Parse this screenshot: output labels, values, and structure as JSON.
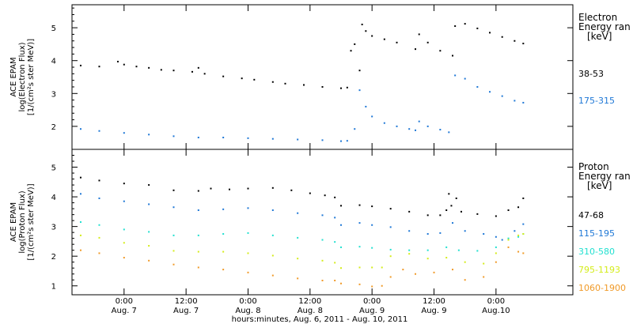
{
  "chart_data": [
    {
      "type": "scatter",
      "panel": "electron",
      "ylabel_lines": [
        "ACE EPAM",
        "log(Electron Flux)",
        "[1/(cm²s ster MeV)]"
      ],
      "ylim": [
        1.3,
        5.7
      ],
      "yticks": [
        2,
        3,
        4,
        5
      ],
      "legend_title_lines": [
        "Electron",
        "Energy ran",
        "[keV]"
      ],
      "series": [
        {
          "name": "38-53",
          "color": "#000000",
          "points": [
            [
              -0.35,
              3.85
            ],
            [
              -0.2,
              3.82
            ],
            [
              -0.05,
              3.97
            ],
            [
              0.0,
              3.88
            ],
            [
              0.1,
              3.82
            ],
            [
              0.2,
              3.78
            ],
            [
              0.3,
              3.72
            ],
            [
              0.4,
              3.7
            ],
            [
              0.55,
              3.66
            ],
            [
              0.6,
              3.78
            ],
            [
              0.65,
              3.6
            ],
            [
              0.8,
              3.52
            ],
            [
              0.95,
              3.46
            ],
            [
              1.05,
              3.42
            ],
            [
              1.2,
              3.35
            ],
            [
              1.3,
              3.3
            ],
            [
              1.45,
              3.26
            ],
            [
              1.6,
              3.2
            ],
            [
              1.75,
              3.16
            ],
            [
              1.8,
              3.18
            ],
            [
              1.83,
              4.3
            ],
            [
              1.86,
              4.5
            ],
            [
              1.9,
              3.7
            ],
            [
              1.92,
              5.1
            ],
            [
              1.95,
              4.9
            ],
            [
              2.0,
              4.75
            ],
            [
              2.1,
              4.65
            ],
            [
              2.2,
              4.55
            ],
            [
              2.35,
              4.35
            ],
            [
              2.38,
              4.8
            ],
            [
              2.45,
              4.55
            ],
            [
              2.55,
              4.3
            ],
            [
              2.65,
              4.15
            ],
            [
              2.67,
              5.05
            ],
            [
              2.75,
              5.12
            ],
            [
              2.85,
              4.98
            ],
            [
              2.95,
              4.85
            ],
            [
              3.05,
              4.72
            ],
            [
              3.15,
              4.6
            ],
            [
              3.22,
              4.52
            ]
          ]
        },
        {
          "name": "175-315",
          "color": "#1f78d6",
          "points": [
            [
              -0.35,
              1.92
            ],
            [
              -0.2,
              1.86
            ],
            [
              0.0,
              1.8
            ],
            [
              0.2,
              1.75
            ],
            [
              0.4,
              1.7
            ],
            [
              0.6,
              1.66
            ],
            [
              0.8,
              1.66
            ],
            [
              1.0,
              1.64
            ],
            [
              1.2,
              1.62
            ],
            [
              1.4,
              1.6
            ],
            [
              1.6,
              1.58
            ],
            [
              1.75,
              1.55
            ],
            [
              1.8,
              1.56
            ],
            [
              1.86,
              1.92
            ],
            [
              1.9,
              3.1
            ],
            [
              1.95,
              2.6
            ],
            [
              2.0,
              2.3
            ],
            [
              2.1,
              2.1
            ],
            [
              2.2,
              2.0
            ],
            [
              2.3,
              1.92
            ],
            [
              2.35,
              1.88
            ],
            [
              2.38,
              2.15
            ],
            [
              2.45,
              2.0
            ],
            [
              2.55,
              1.9
            ],
            [
              2.62,
              1.82
            ],
            [
              2.67,
              3.55
            ],
            [
              2.75,
              3.45
            ],
            [
              2.85,
              3.2
            ],
            [
              2.95,
              3.05
            ],
            [
              3.05,
              2.92
            ],
            [
              3.15,
              2.78
            ],
            [
              3.22,
              2.72
            ]
          ]
        }
      ]
    },
    {
      "type": "scatter",
      "panel": "proton",
      "ylabel_lines": [
        "ACE EPAM",
        "log(Proton Flux)",
        "[1/(cm²s ster MeV)]"
      ],
      "ylim": [
        0.7,
        5.6
      ],
      "yticks": [
        1,
        2,
        3,
        4,
        5
      ],
      "legend_title_lines": [
        "Proton",
        "Energy ran",
        "[keV]"
      ],
      "series": [
        {
          "name": "47-68",
          "color": "#000000",
          "points": [
            [
              -0.35,
              4.65
            ],
            [
              -0.2,
              4.55
            ],
            [
              0.0,
              4.45
            ],
            [
              0.2,
              4.4
            ],
            [
              0.4,
              4.22
            ],
            [
              0.6,
              4.2
            ],
            [
              0.7,
              4.28
            ],
            [
              0.85,
              4.25
            ],
            [
              1.0,
              4.28
            ],
            [
              1.2,
              4.3
            ],
            [
              1.35,
              4.22
            ],
            [
              1.5,
              4.12
            ],
            [
              1.62,
              4.05
            ],
            [
              1.7,
              3.98
            ],
            [
              1.75,
              3.7
            ],
            [
              1.9,
              3.72
            ],
            [
              2.0,
              3.68
            ],
            [
              2.15,
              3.6
            ],
            [
              2.3,
              3.5
            ],
            [
              2.45,
              3.38
            ],
            [
              2.55,
              3.38
            ],
            [
              2.6,
              3.55
            ],
            [
              2.62,
              4.1
            ],
            [
              2.64,
              3.7
            ],
            [
              2.68,
              3.95
            ],
            [
              2.72,
              3.5
            ],
            [
              2.85,
              3.42
            ],
            [
              3.0,
              3.35
            ],
            [
              3.1,
              3.55
            ],
            [
              3.18,
              3.65
            ],
            [
              3.22,
              3.95
            ]
          ]
        },
        {
          "name": "115-195",
          "color": "#1f78d6",
          "points": [
            [
              -0.35,
              4.1
            ],
            [
              -0.2,
              3.95
            ],
            [
              0.0,
              3.85
            ],
            [
              0.2,
              3.75
            ],
            [
              0.4,
              3.65
            ],
            [
              0.6,
              3.55
            ],
            [
              0.8,
              3.58
            ],
            [
              1.0,
              3.62
            ],
            [
              1.2,
              3.55
            ],
            [
              1.4,
              3.45
            ],
            [
              1.6,
              3.38
            ],
            [
              1.7,
              3.3
            ],
            [
              1.75,
              3.05
            ],
            [
              1.9,
              3.12
            ],
            [
              2.0,
              3.05
            ],
            [
              2.15,
              2.98
            ],
            [
              2.3,
              2.85
            ],
            [
              2.45,
              2.75
            ],
            [
              2.55,
              2.78
            ],
            [
              2.65,
              3.12
            ],
            [
              2.75,
              2.85
            ],
            [
              2.9,
              2.75
            ],
            [
              3.0,
              2.65
            ],
            [
              3.05,
              2.55
            ],
            [
              3.15,
              2.85
            ],
            [
              3.22,
              3.08
            ]
          ]
        },
        {
          "name": "310-580",
          "color": "#22e0d0",
          "points": [
            [
              -0.35,
              3.15
            ],
            [
              -0.2,
              3.05
            ],
            [
              0.0,
              2.9
            ],
            [
              0.2,
              2.82
            ],
            [
              0.4,
              2.7
            ],
            [
              0.6,
              2.7
            ],
            [
              0.8,
              2.75
            ],
            [
              1.0,
              2.78
            ],
            [
              1.2,
              2.7
            ],
            [
              1.4,
              2.62
            ],
            [
              1.6,
              2.55
            ],
            [
              1.7,
              2.48
            ],
            [
              1.75,
              2.3
            ],
            [
              1.9,
              2.32
            ],
            [
              2.0,
              2.28
            ],
            [
              2.15,
              2.22
            ],
            [
              2.3,
              2.2
            ],
            [
              2.45,
              2.2
            ],
            [
              2.6,
              2.3
            ],
            [
              2.7,
              2.2
            ],
            [
              2.85,
              2.18
            ],
            [
              3.0,
              2.3
            ],
            [
              3.1,
              2.6
            ],
            [
              3.18,
              2.65
            ],
            [
              3.22,
              2.75
            ]
          ]
        },
        {
          "name": "795-1193",
          "color": "#d4ec1a",
          "points": [
            [
              -0.35,
              2.7
            ],
            [
              -0.2,
              2.62
            ],
            [
              0.0,
              2.45
            ],
            [
              0.2,
              2.35
            ],
            [
              0.4,
              2.18
            ],
            [
              0.6,
              2.15
            ],
            [
              0.8,
              2.15
            ],
            [
              1.0,
              2.1
            ],
            [
              1.2,
              2.02
            ],
            [
              1.4,
              1.92
            ],
            [
              1.6,
              1.85
            ],
            [
              1.7,
              1.78
            ],
            [
              1.75,
              1.6
            ],
            [
              1.9,
              1.62
            ],
            [
              2.0,
              1.62
            ],
            [
              2.08,
              1.62
            ],
            [
              2.15,
              2.0
            ],
            [
              2.3,
              2.08
            ],
            [
              2.45,
              1.92
            ],
            [
              2.6,
              1.95
            ],
            [
              2.75,
              1.8
            ],
            [
              2.9,
              1.75
            ],
            [
              3.0,
              2.1
            ],
            [
              3.1,
              2.55
            ],
            [
              3.18,
              2.7
            ],
            [
              3.22,
              2.75
            ]
          ]
        },
        {
          "name": "1060-1900",
          "color": "#f09a28",
          "points": [
            [
              -0.35,
              2.2
            ],
            [
              -0.2,
              2.1
            ],
            [
              0.0,
              1.95
            ],
            [
              0.2,
              1.85
            ],
            [
              0.4,
              1.72
            ],
            [
              0.6,
              1.62
            ],
            [
              0.8,
              1.55
            ],
            [
              1.0,
              1.45
            ],
            [
              1.2,
              1.35
            ],
            [
              1.4,
              1.25
            ],
            [
              1.6,
              1.18
            ],
            [
              1.7,
              1.18
            ],
            [
              1.75,
              1.08
            ],
            [
              1.9,
              1.05
            ],
            [
              2.0,
              0.98
            ],
            [
              2.08,
              1.0
            ],
            [
              2.15,
              1.3
            ],
            [
              2.25,
              1.55
            ],
            [
              2.35,
              1.4
            ],
            [
              2.5,
              1.45
            ],
            [
              2.65,
              1.55
            ],
            [
              2.75,
              1.2
            ],
            [
              2.9,
              1.3
            ],
            [
              3.0,
              1.8
            ],
            [
              3.1,
              2.3
            ],
            [
              3.18,
              2.15
            ],
            [
              3.22,
              2.1
            ]
          ]
        }
      ]
    }
  ],
  "x_axis": {
    "xlim": [
      -0.42,
      3.62
    ],
    "ticks": [
      {
        "x": 0.0,
        "time": "0:00",
        "date": "Aug. 7"
      },
      {
        "x": 0.5,
        "time": "12:00",
        "date": "Aug. 7"
      },
      {
        "x": 1.0,
        "time": "0:00",
        "date": "Aug. 8"
      },
      {
        "x": 1.5,
        "time": "12:00",
        "date": "Aug. 8"
      },
      {
        "x": 2.0,
        "time": "0:00",
        "date": "Aug. 9"
      },
      {
        "x": 2.5,
        "time": "12:00",
        "date": "Aug. 9"
      },
      {
        "x": 3.0,
        "time": "0:00",
        "date": "Aug.10"
      }
    ],
    "xlabel": "hours:minutes, Aug.  6, 2011 - Aug. 10, 2011"
  }
}
